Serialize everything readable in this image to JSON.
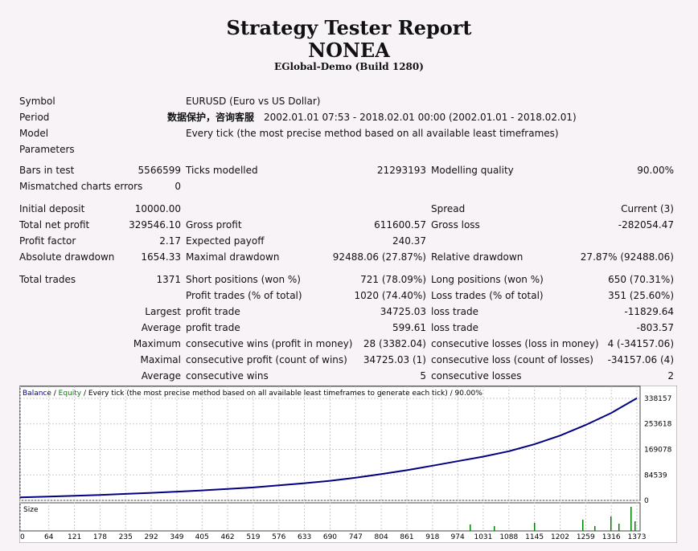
{
  "report": {
    "title": "Strategy Tester Report",
    "expert": "NONEA",
    "server": "EGlobal-Demo (Build 1280)"
  },
  "fields": {
    "symbol_label": "Symbol",
    "symbol_value": "EURUSD (Euro vs US Dollar)",
    "period_label": "Period",
    "period_watermark": "数据保护，咨询客服",
    "period_value": "2002.01.01 07:53 - 2018.02.01 00:00 (2002.01.01 - 2018.02.01)",
    "model_label": "Model",
    "model_value": "Every tick (the most precise method based on all available least timeframes)",
    "parameters_label": "Parameters",
    "bars_label": "Bars in test",
    "bars_value": "5566599",
    "ticks_label": "Ticks modelled",
    "ticks_value": "21293193",
    "quality_label": "Modelling quality",
    "quality_value": "90.00%",
    "mismatch_label": "Mismatched charts errors",
    "mismatch_value": "0",
    "deposit_label": "Initial deposit",
    "deposit_value": "10000.00",
    "spread_label": "Spread",
    "spread_value": "Current (3)",
    "netprofit_label": "Total net profit",
    "netprofit_value": "329546.10",
    "grossprofit_label": "Gross profit",
    "grossprofit_value": "611600.57",
    "grossloss_label": "Gross loss",
    "grossloss_value": "-282054.47",
    "pf_label": "Profit factor",
    "pf_value": "2.17",
    "payoff_label": "Expected payoff",
    "payoff_value": "240.37",
    "absdd_label": "Absolute drawdown",
    "absdd_value": "1654.33",
    "maxdd_label": "Maximal drawdown",
    "maxdd_value": "92488.06 (27.87%)",
    "reldd_label": "Relative drawdown",
    "reldd_value": "27.87% (92488.06)",
    "trades_label": "Total trades",
    "trades_value": "1371",
    "short_label": "Short positions (won %)",
    "short_value": "721 (78.09%)",
    "long_label": "Long positions (won %)",
    "long_value": "650 (70.31%)",
    "profittrades_label": "Profit trades (% of total)",
    "profittrades_value": "1020 (74.40%)",
    "losstrades_label": "Loss trades (% of total)",
    "losstrades_value": "351 (25.60%)",
    "largest_label": "Largest",
    "largest_profit_label": "profit trade",
    "largest_profit_value": "34725.03",
    "largest_loss_label": "loss trade",
    "largest_loss_value": "-11829.64",
    "average_label": "Average",
    "average_profit_label": "profit trade",
    "average_profit_value": "599.61",
    "average_loss_label": "loss trade",
    "average_loss_value": "-803.57",
    "maximum_label": "Maximum",
    "max_conswins_label": "consecutive wins (profit in money)",
    "max_conswins_value": "28 (3382.04)",
    "max_conslosses_label": "consecutive losses (loss in money)",
    "max_conslosses_value": "4 (-34157.06)",
    "maximal_label": "Maximal",
    "maximal_consprofit_label": "consecutive profit (count of wins)",
    "maximal_consprofit_value": "34725.03 (1)",
    "maximal_consloss_label": "consecutive loss (count of losses)",
    "maximal_consloss_value": "-34157.06 (4)",
    "avgcons_label": "Average",
    "avgcons_wins_label": "consecutive wins",
    "avgcons_wins_value": "5",
    "avgcons_losses_label": "consecutive losses",
    "avgcons_losses_value": "2"
  },
  "legend": {
    "balance": "Balance",
    "sep1": " / ",
    "equity": "Equity",
    "rest": " / Every tick (the most precise method based on all available least timeframes to generate each tick) / 90.00%"
  },
  "colors": {
    "balance": "#000080",
    "equity": "#008000",
    "grid": "#c8c8c8",
    "volume": "#008000"
  },
  "chart_data": {
    "type": "line",
    "size_label": "Size",
    "y_ticks": [
      "338157",
      "253618",
      "169078",
      "84539",
      "0"
    ],
    "x_ticks": [
      "0",
      "64",
      "121",
      "178",
      "235",
      "292",
      "349",
      "405",
      "462",
      "519",
      "576",
      "633",
      "690",
      "747",
      "804",
      "861",
      "918",
      "974",
      "1031",
      "1088",
      "1145",
      "1202",
      "1259",
      "1316",
      "1373"
    ],
    "ylim": [
      0,
      338157
    ],
    "xlim": [
      0,
      1373
    ],
    "series": [
      {
        "name": "Balance",
        "x": [
          0,
          64,
          121,
          178,
          235,
          292,
          349,
          405,
          462,
          519,
          576,
          633,
          690,
          747,
          804,
          861,
          918,
          974,
          1031,
          1088,
          1145,
          1202,
          1259,
          1316,
          1373
        ],
        "values": [
          10000,
          12500,
          15500,
          18000,
          21500,
          25000,
          29000,
          33000,
          38000,
          43000,
          50000,
          57000,
          65000,
          75000,
          87000,
          100000,
          115000,
          130000,
          145000,
          163000,
          186000,
          215000,
          250000,
          290000,
          339000
        ]
      }
    ]
  }
}
